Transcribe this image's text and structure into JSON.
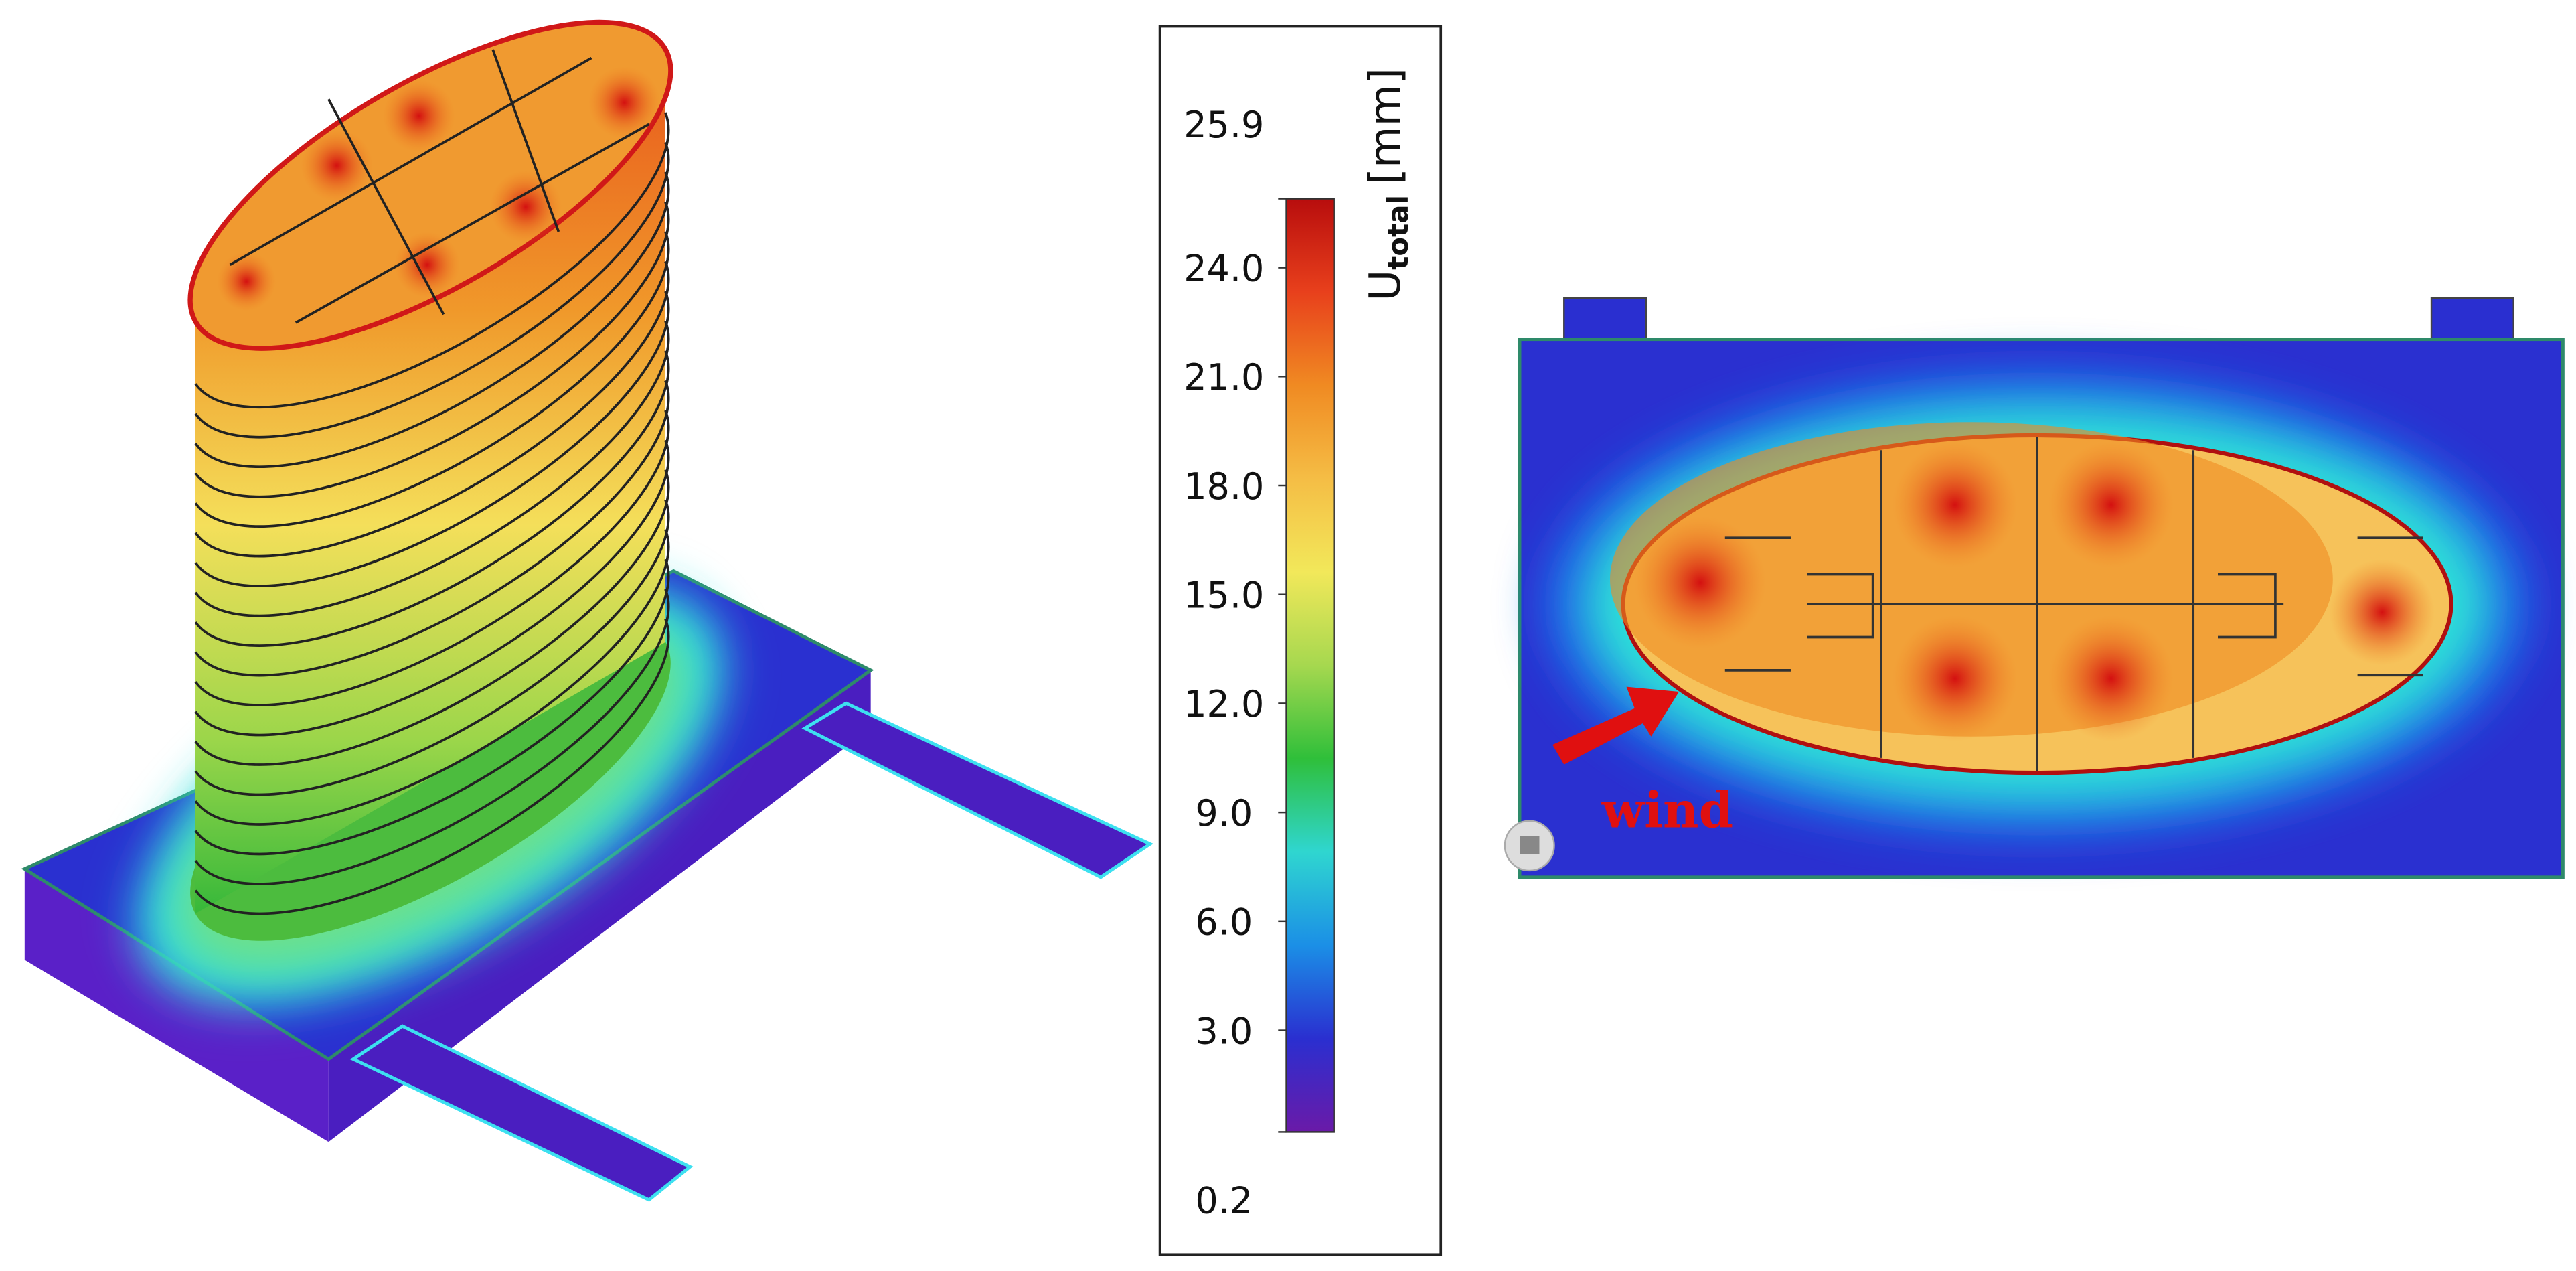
{
  "legend": {
    "title": {
      "symbol": "U",
      "subscript": "total",
      "unit": "[mm]"
    },
    "ticks": [
      25.9,
      {
        "value": 24,
        "label": "24.0"
      },
      {
        "value": 21,
        "label": "21.0"
      },
      {
        "value": 18,
        "label": "18.0"
      },
      {
        "value": 15,
        "label": "15.0"
      },
      {
        "value": 12,
        "label": "12.0"
      },
      {
        "value": 9,
        "label": "9.0"
      },
      {
        "value": 6,
        "label": "6.0"
      },
      {
        "value": 3,
        "label": "3.0"
      },
      0.2
    ],
    "colors": [
      "#6a1aa8",
      "#2a2fd0",
      "#1b8fe6",
      "#2fd6d0",
      "#2fbf3a",
      "#a6d84f",
      "#f2e85a",
      "#f5bd45",
      "#f08a22",
      "#e8401c",
      "#b80d0d"
    ]
  },
  "plan": {
    "annotation": "wind"
  }
}
